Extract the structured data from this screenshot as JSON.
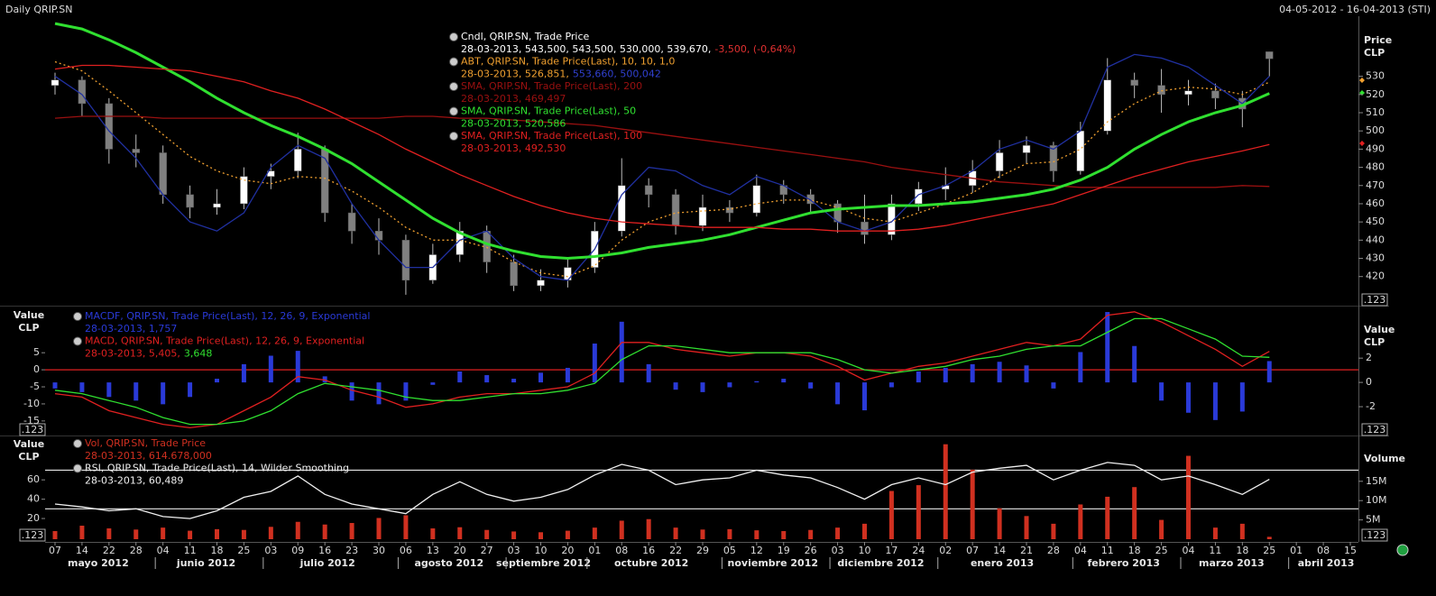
{
  "header": {
    "title": "Daily QRIP.SN",
    "date_range": "04-05-2012 - 16-04-2013 (STI)",
    "value_button": ".123"
  },
  "chart_data": [
    {
      "type": "price-panel",
      "axis_label_right": [
        "Price",
        "CLP"
      ],
      "y_axis_side": "right",
      "ylim": [
        405,
        563
      ],
      "yticks": [
        420,
        430,
        440,
        450,
        460,
        470,
        480,
        490,
        500,
        510,
        520,
        530
      ],
      "series": [
        {
          "type": "candlestick",
          "name": "Cndl, QRIP.SN, Trade Price",
          "color": "#ffffff",
          "down_color": "#808080",
          "legend_value": "28-03-2013, 543,500, 543,500, 530,000, 539,670,",
          "legend_extra": "-3,500, (-0,64%)",
          "legend_extra_color": "#e03030",
          "open": [
            525,
            528,
            515,
            490,
            488,
            465,
            458,
            460,
            475,
            478,
            490,
            455,
            445,
            440,
            418,
            432,
            445,
            428,
            415,
            418,
            425,
            445,
            470,
            465,
            448,
            458,
            455,
            470,
            465,
            460,
            450,
            443,
            460,
            468,
            470,
            478,
            488,
            492,
            478,
            500,
            528,
            525,
            520,
            522,
            518,
            543.5,
            null,
            null,
            null
          ],
          "high": [
            532,
            530,
            518,
            498,
            492,
            470,
            468,
            480,
            482,
            499,
            492,
            460,
            452,
            443,
            438,
            450,
            448,
            432,
            424,
            430,
            450,
            485,
            474,
            468,
            465,
            462,
            476,
            473,
            468,
            462,
            465,
            465,
            472,
            480,
            484,
            495,
            497,
            494,
            505,
            540,
            532,
            534,
            528,
            526,
            522,
            543.5,
            null,
            null,
            null
          ],
          "low": [
            520,
            508,
            482,
            480,
            460,
            452,
            454,
            457,
            468,
            474,
            450,
            438,
            432,
            410,
            416,
            428,
            422,
            412,
            412,
            414,
            422,
            442,
            458,
            443,
            445,
            450,
            453,
            460,
            455,
            444,
            438,
            440,
            456,
            462,
            466,
            474,
            482,
            472,
            476,
            498,
            518,
            510,
            514,
            512,
            502,
            530,
            null,
            null,
            null
          ],
          "close": [
            528,
            515,
            490,
            488,
            465,
            458,
            460,
            475,
            478,
            490,
            455,
            445,
            440,
            418,
            432,
            445,
            428,
            415,
            418,
            425,
            445,
            470,
            465,
            448,
            458,
            455,
            470,
            465,
            460,
            450,
            443,
            460,
            468,
            470,
            478,
            488,
            492,
            478,
            500,
            528,
            525,
            520,
            522,
            518,
            512,
            539.67,
            null,
            null,
            null
          ]
        },
        {
          "type": "line",
          "name": "ABT, QRIP.SN, Trade Price(Last),  10, 10, 1,0",
          "color": "#f0a030",
          "style": "dotted",
          "legend_value": "28-03-2013, 526,851,",
          "legend_extra": "553,660, 500,042",
          "legend_extra_color": "#3040d0",
          "values": [
            538,
            533,
            522,
            510,
            498,
            486,
            478,
            473,
            471,
            475,
            474,
            467,
            458,
            447,
            440,
            440,
            436,
            428,
            422,
            420,
            426,
            440,
            450,
            455,
            456,
            457,
            460,
            462,
            462,
            458,
            452,
            450,
            455,
            460,
            466,
            475,
            482,
            483,
            490,
            505,
            515,
            522,
            524,
            523,
            520,
            526.851,
            null,
            null,
            null
          ]
        },
        {
          "type": "line",
          "color": "#2030a0",
          "values": [
            530,
            520,
            500,
            485,
            465,
            450,
            445,
            455,
            480,
            492,
            485,
            460,
            440,
            425,
            425,
            440,
            445,
            430,
            420,
            418,
            435,
            465,
            480,
            478,
            470,
            465,
            475,
            470,
            462,
            450,
            445,
            450,
            465,
            470,
            478,
            490,
            495,
            490,
            500,
            535,
            542,
            540,
            535,
            525,
            515,
            530,
            null,
            null,
            null
          ]
        },
        {
          "type": "line",
          "name": "SMA, QRIP.SN, Trade Price(Last),  200",
          "color": "#9a1010",
          "legend_value": "28-03-2013, 469,497",
          "values": [
            507,
            508,
            508,
            508,
            507,
            507,
            507,
            507,
            507,
            507,
            507,
            507,
            507,
            508,
            508,
            507,
            507,
            506,
            505,
            504,
            503,
            501,
            499,
            497,
            495,
            493,
            491,
            489,
            487,
            485,
            483,
            480,
            478,
            476,
            474,
            472,
            471,
            470,
            469,
            469,
            469,
            469,
            469,
            469,
            470,
            469.497,
            null,
            null,
            null
          ]
        },
        {
          "type": "line",
          "name": "SMA, QRIP.SN, Trade Price(Last),  50",
          "color": "#30e030",
          "width": 3,
          "legend_value": "28-03-2013, 520,586",
          "values": [
            559,
            556,
            550,
            543,
            535,
            527,
            518,
            510,
            503,
            497,
            490,
            482,
            472,
            462,
            452,
            444,
            438,
            434,
            431,
            430,
            431,
            433,
            436,
            438,
            440,
            443,
            447,
            451,
            455,
            457,
            458,
            459,
            459,
            460,
            461,
            463,
            465,
            468,
            473,
            480,
            490,
            498,
            505,
            510,
            514,
            520.586,
            null,
            null,
            null
          ]
        },
        {
          "type": "line",
          "name": "SMA, QRIP.SN, Trade Price(Last),  100",
          "color": "#e02020",
          "legend_value": "28-03-2013, 492,530",
          "values": [
            534,
            536,
            536,
            535,
            534,
            533,
            530,
            527,
            522,
            518,
            512,
            505,
            498,
            490,
            483,
            476,
            470,
            464,
            459,
            455,
            452,
            450,
            449,
            448,
            447,
            447,
            447,
            446,
            446,
            445,
            445,
            445,
            446,
            448,
            451,
            454,
            457,
            460,
            465,
            470,
            475,
            479,
            483,
            486,
            489,
            492.53,
            null,
            null,
            null
          ]
        }
      ]
    },
    {
      "type": "macd-panel",
      "axis_label_left": [
        "Value",
        "CLP"
      ],
      "axis_label_right": [
        "Value",
        "CLP"
      ],
      "ylim": [
        -19,
        18
      ],
      "yticks": [
        5,
        0,
        -5,
        -10,
        -15
      ],
      "y2lim": [
        -4.3,
        6.1
      ],
      "y2ticks": [
        2,
        0,
        -2
      ],
      "reference_lines": [
        {
          "value": 0,
          "color": "#e02020"
        }
      ],
      "series": [
        {
          "type": "bar",
          "axis": "y2",
          "name": "MACDF, QRIP.SN, Trade Price(Last),  12, 26, 9, Exponential",
          "color": "#2a3ad8",
          "legend_value": "28-03-2013, 1,757",
          "values": [
            -0.5,
            -0.8,
            -1.2,
            -1.5,
            -1.8,
            -1.2,
            0.3,
            1.5,
            2.2,
            2.6,
            0.5,
            -1.5,
            -1.8,
            -1.5,
            -0.2,
            0.9,
            0.6,
            0.3,
            0.8,
            1.2,
            3.2,
            5,
            1.5,
            -0.6,
            -0.8,
            -0.4,
            0.1,
            0.3,
            -0.5,
            -1.8,
            -2.3,
            -0.4,
            0.9,
            1.2,
            1.5,
            1.7,
            1.4,
            -0.5,
            2.5,
            5.8,
            3,
            -1.5,
            -2.5,
            -3.1,
            -2.4,
            1.757,
            null,
            null,
            null
          ]
        },
        {
          "type": "line",
          "name": "MACD, QRIP.SN, Trade Price(Last),  12, 26, 9, Exponential",
          "color": "#e02020",
          "legend_value": "28-03-2013, 5,405,",
          "legend_extra": "3,648",
          "legend_extra_color": "#30e030",
          "values": [
            -7,
            -8,
            -12,
            -14,
            -16,
            -17,
            -16,
            -12,
            -8,
            -2,
            -3,
            -6,
            -8,
            -11,
            -10,
            -8,
            -7,
            -7,
            -6,
            -5,
            -1,
            8,
            8,
            6,
            5,
            4,
            5,
            5,
            4,
            1,
            -3,
            -1,
            1,
            2,
            4,
            6,
            8,
            7,
            9,
            16,
            17,
            14,
            10,
            6,
            1,
            5.405,
            null,
            null,
            null
          ]
        },
        {
          "type": "line",
          "color": "#30e030",
          "values": [
            -6,
            -7,
            -9,
            -11,
            -14,
            -16,
            -16,
            -15,
            -12,
            -7,
            -4,
            -5,
            -6,
            -8,
            -9,
            -9,
            -8,
            -7,
            -7,
            -6,
            -4,
            3,
            7,
            7,
            6,
            5,
            5,
            5,
            5,
            3,
            0,
            -1,
            0,
            1,
            3,
            4,
            6,
            7,
            7,
            11,
            15,
            15,
            12,
            9,
            4,
            3.648,
            null,
            null,
            null
          ]
        }
      ]
    },
    {
      "type": "volume-rsi-panel",
      "axis_label_left": [
        "Value",
        "CLP"
      ],
      "axis_label_right": [
        "Volume"
      ],
      "ylim": [
        -1.4,
        104
      ],
      "yticks": [
        20,
        40,
        60
      ],
      "y2lim": [
        0,
        26400000
      ],
      "y2ticks": [
        {
          "value": 5000000,
          "label": "5M"
        },
        {
          "value": 10000000,
          "label": "10M"
        },
        {
          "value": 15000000,
          "label": "15M"
        }
      ],
      "reference_lines": [
        {
          "value": 70,
          "color": "#e8e8e8"
        },
        {
          "value": 30,
          "color": "#e8e8e8"
        }
      ],
      "series": [
        {
          "type": "bar",
          "axis": "y2",
          "name": "Vol, QRIP.SN, Trade Price",
          "color": "#d03020",
          "legend_value": "28-03-2013, 614.678,000",
          "values": [
            2100000,
            3500000,
            2800000,
            2500000,
            3000000,
            2200000,
            2600000,
            2400000,
            3200000,
            4500000,
            3800000,
            4200000,
            5500000,
            6200000,
            2800000,
            3100000,
            2400000,
            2000000,
            1800000,
            2200000,
            3000000,
            4800000,
            5200000,
            3000000,
            2500000,
            2600000,
            2300000,
            2100000,
            2400000,
            3000000,
            4000000,
            12500000,
            14000000,
            24600000,
            18000000,
            8000000,
            6000000,
            4000000,
            9000000,
            11000000,
            13500000,
            5000000,
            21600000,
            3000000,
            4000000,
            614678,
            null,
            null,
            null
          ]
        },
        {
          "type": "line",
          "name": "RSI, QRIP.SN, Trade Price(Last),  14, Wilder Smoothing",
          "color": "#f0f0f0",
          "legend_value": "28-03-2013, 60,489",
          "values": [
            35,
            32,
            28,
            30,
            22,
            20,
            28,
            42,
            48,
            64,
            45,
            35,
            30,
            25,
            45,
            58,
            45,
            38,
            42,
            50,
            65,
            76,
            70,
            55,
            60,
            62,
            70,
            65,
            62,
            52,
            40,
            55,
            62,
            55,
            68,
            72,
            75,
            60,
            70,
            78,
            75,
            60,
            64,
            55,
            45,
            60.489,
            null,
            null,
            null
          ]
        }
      ],
      "categories": [
        "07",
        "14",
        "22",
        "28",
        "04",
        "11",
        "18",
        "25",
        "03",
        "09",
        "16",
        "23",
        "30",
        "06",
        "13",
        "20",
        "27",
        "03",
        "10",
        "20",
        "01",
        "08",
        "16",
        "22",
        "29",
        "05",
        "12",
        "19",
        "26",
        "03",
        "10",
        "17",
        "24",
        "02",
        "07",
        "14",
        "21",
        "28",
        "04",
        "11",
        "18",
        "25",
        "04",
        "11",
        "18",
        "25",
        "01",
        "08",
        "15"
      ],
      "months": [
        {
          "label": "mayo 2012",
          "start": 0
        },
        {
          "label": "junio 2012",
          "start": 4
        },
        {
          "label": "julio 2012",
          "start": 8
        },
        {
          "label": "agosto 2012",
          "start": 13
        },
        {
          "label": "septiembre 2012",
          "start": 17
        },
        {
          "label": "octubre 2012",
          "start": 20
        },
        {
          "label": "noviembre 2012",
          "start": 25
        },
        {
          "label": "diciembre 2012",
          "start": 29
        },
        {
          "label": "enero 2013",
          "start": 33
        },
        {
          "label": "febrero 2013",
          "start": 38
        },
        {
          "label": "marzo 2013",
          "start": 42
        },
        {
          "label": "abril 2013",
          "start": 46
        }
      ]
    }
  ]
}
